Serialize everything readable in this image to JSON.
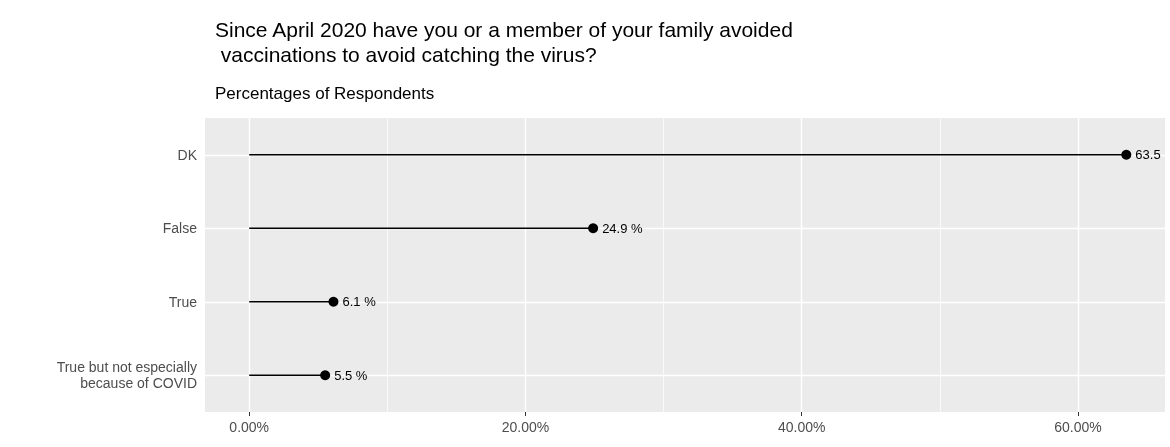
{
  "chart_data": {
    "type": "lollipop",
    "orientation": "horizontal",
    "title": "Since April 2020 have you or a member of your family avoided\n vaccinations to avoid catching the virus?",
    "subtitle": "Percentages of Respondents",
    "categories": [
      "DK",
      "False",
      "True",
      "True but not especially\nbecause of COVID"
    ],
    "values": [
      63.5,
      24.9,
      6.1,
      5.5
    ],
    "color": "#000000",
    "value_labels": [
      "63.5",
      "24.9 %",
      "6.1 %",
      "5.5 %"
    ],
    "xlim": [
      -3.2,
      66.3
    ],
    "xticks": [
      {
        "value": 0,
        "label": "0.00%"
      },
      {
        "value": 20,
        "label": "20.00%"
      },
      {
        "value": 40,
        "label": "40.00%"
      },
      {
        "value": 60,
        "label": "60.00%"
      }
    ],
    "grid": true,
    "marker": "circle"
  }
}
